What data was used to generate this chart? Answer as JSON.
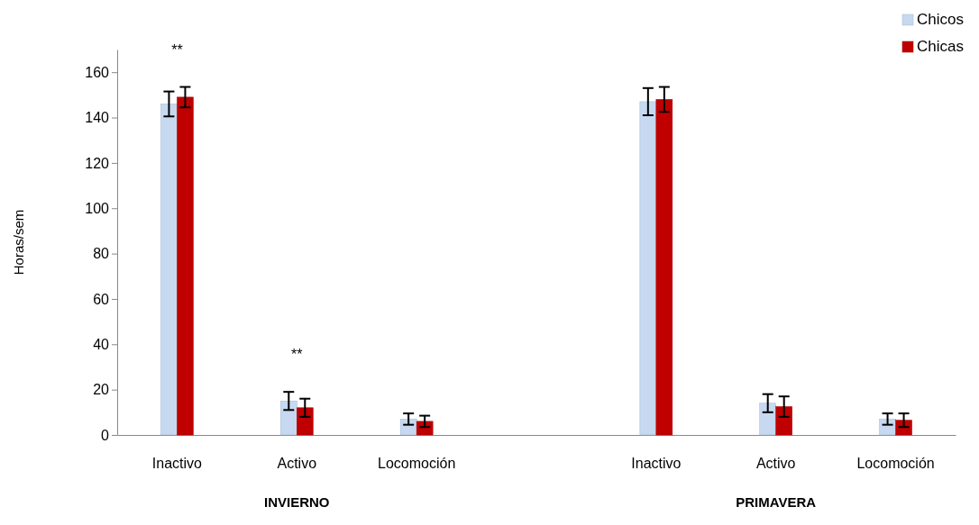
{
  "chart_data": {
    "type": "bar",
    "ylabel": "Horas/sem",
    "categories": [
      "Inactivo",
      "Activo",
      "Locomoción",
      null,
      "Inactivo",
      "Activo",
      "Locomoción"
    ],
    "series": [
      {
        "name": "Chicos",
        "color": "#c6d9f1",
        "values": [
          146,
          15,
          7,
          null,
          147,
          14,
          7
        ],
        "errors": [
          5.5,
          4,
          2.5,
          null,
          6,
          4,
          2.5
        ]
      },
      {
        "name": "Chicas",
        "color": "#c00000",
        "values": [
          149,
          12,
          6,
          null,
          148,
          12.5,
          6.5
        ],
        "errors": [
          4.5,
          4,
          2.5,
          null,
          5.5,
          4.5,
          3
        ]
      }
    ],
    "ylim": [
      0,
      170
    ],
    "yticks": [
      0,
      20,
      40,
      60,
      80,
      100,
      120,
      140,
      160
    ],
    "annotations": [
      "**",
      "**",
      "INVIERNO",
      "PRIMAVERA"
    ],
    "legend": "top right",
    "grid": false
  }
}
